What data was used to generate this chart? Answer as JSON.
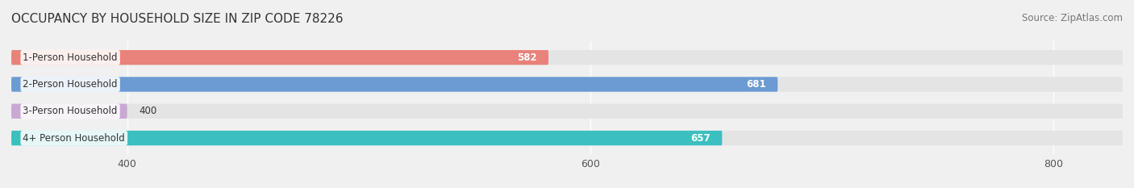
{
  "title": "OCCUPANCY BY HOUSEHOLD SIZE IN ZIP CODE 78226",
  "source": "Source: ZipAtlas.com",
  "categories": [
    "1-Person Household",
    "2-Person Household",
    "3-Person Household",
    "4+ Person Household"
  ],
  "values": [
    582,
    681,
    400,
    657
  ],
  "bar_colors": [
    "#E8827A",
    "#6B9BD2",
    "#C9A8D4",
    "#3BBFBF"
  ],
  "xlim": [
    350,
    830
  ],
  "xticks": [
    400,
    600,
    800
  ],
  "background_color": "#f0f0f0",
  "bar_bg_color": "#e4e4e4",
  "title_fontsize": 11,
  "source_fontsize": 8.5,
  "label_fontsize": 8.5,
  "value_fontsize": 8.5,
  "bar_height": 0.55,
  "fig_bg": "#f0f0f0"
}
